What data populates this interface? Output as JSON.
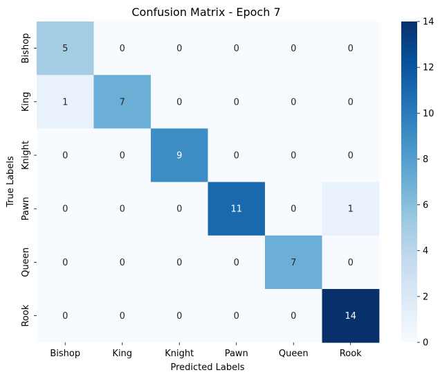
{
  "chart_data": {
    "type": "heatmap",
    "title": "Confusion Matrix - Epoch 7",
    "xlabel": "Predicted Labels",
    "ylabel": "True Labels",
    "x_categories": [
      "Bishop",
      "King",
      "Knight",
      "Pawn",
      "Queen",
      "Rook"
    ],
    "y_categories": [
      "Bishop",
      "King",
      "Knight",
      "Pawn",
      "Queen",
      "Rook"
    ],
    "values": [
      [
        5,
        0,
        0,
        0,
        0,
        0
      ],
      [
        1,
        7,
        0,
        0,
        0,
        0
      ],
      [
        0,
        0,
        9,
        0,
        0,
        0
      ],
      [
        0,
        0,
        0,
        11,
        0,
        1
      ],
      [
        0,
        0,
        0,
        0,
        7,
        0
      ],
      [
        0,
        0,
        0,
        0,
        0,
        14
      ]
    ],
    "colorbar": {
      "min": 0,
      "max": 14,
      "ticks": [
        0,
        2,
        4,
        6,
        8,
        10,
        12,
        14
      ]
    },
    "colormap": "Blues",
    "colors": {
      "low": "#f7fbff",
      "high": "#08306b",
      "text_dark": "#262626",
      "text_light": "#ffffff"
    }
  }
}
